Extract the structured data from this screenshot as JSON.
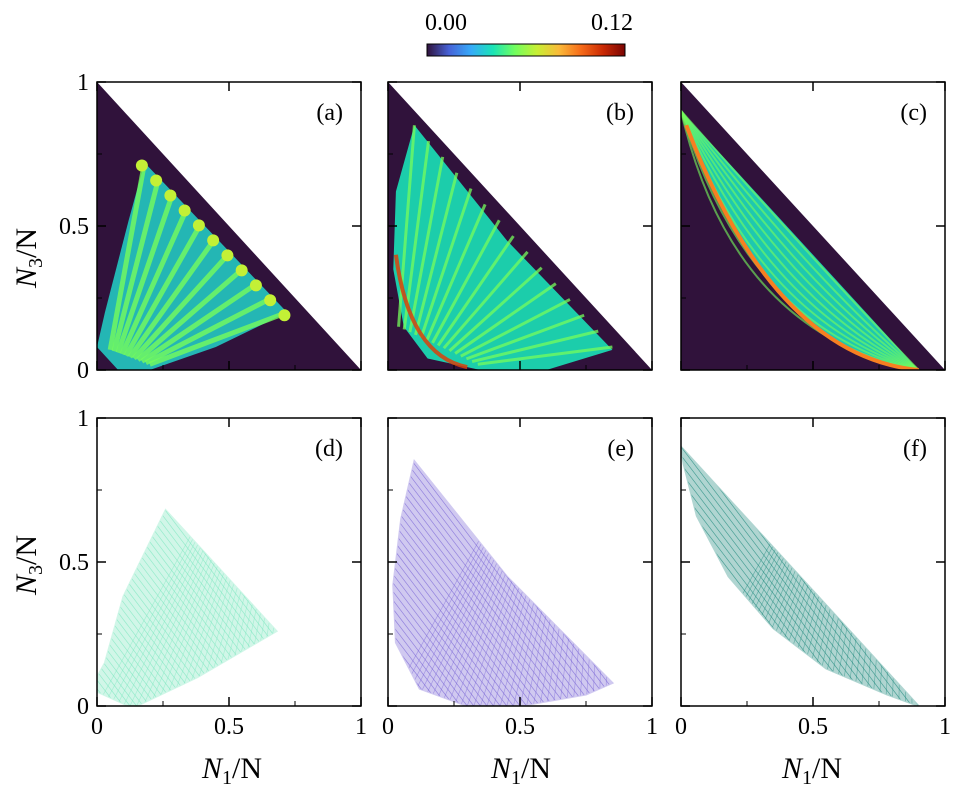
{
  "figure": {
    "colorbar": {
      "min_label": "0.00",
      "max_label": "0.12",
      "min": 0.0,
      "max": 0.12,
      "colormap": "turbo",
      "colors": [
        "#30123b",
        "#4662d7",
        "#36aaf9",
        "#1ae4b6",
        "#72fe5e",
        "#c7ef34",
        "#faba39",
        "#f66b19",
        "#ca2a04",
        "#7a0403"
      ]
    },
    "x_title": {
      "main": "N",
      "sub": "1",
      "rest": "/N"
    },
    "y_title": {
      "main": "N",
      "sub": "3",
      "rest": "/N"
    },
    "background_color": "#30123b"
  },
  "chart_data": [
    {
      "panel": "(a)",
      "type": "heatmap",
      "x_ticks": [
        "",
        "",
        ""
      ],
      "y_ticks": [
        "0",
        "0.5",
        "1"
      ],
      "xlim": [
        0,
        1
      ],
      "ylim": [
        0,
        1
      ],
      "region": "triangle N1 + N3 <= 1",
      "description_values": {
        "peak_max": 0.06,
        "center": [
          0.25,
          0.25
        ],
        "n_rays": 11
      }
    },
    {
      "panel": "(b)",
      "type": "heatmap",
      "x_ticks": [
        "",
        "",
        ""
      ],
      "y_ticks": [
        "",
        "",
        ""
      ],
      "xlim": [
        0,
        1
      ],
      "ylim": [
        0,
        1
      ],
      "description_values": {
        "peak_max": 0.12,
        "n_rays": 15
      }
    },
    {
      "panel": "(c)",
      "type": "heatmap",
      "x_ticks": [
        "",
        "",
        ""
      ],
      "y_ticks": [
        "",
        "",
        ""
      ],
      "xlim": [
        0,
        1
      ],
      "ylim": [
        0,
        1
      ],
      "description_values": {
        "peak_max": 0.11
      }
    },
    {
      "panel": "(d)",
      "type": "scatter",
      "x_ticks": [
        "0",
        "0.5",
        "1"
      ],
      "y_ticks": [
        "0",
        "0.5",
        "1"
      ],
      "xlim": [
        0,
        1
      ],
      "ylim": [
        0,
        1
      ],
      "color": "#7ee8c0",
      "hull": [
        [
          0.0,
          0.1
        ],
        [
          0.03,
          0.15
        ],
        [
          0.1,
          0.38
        ],
        [
          0.26,
          0.68
        ],
        [
          0.68,
          0.26
        ],
        [
          0.38,
          0.1
        ],
        [
          0.15,
          0.0
        ],
        [
          0.12,
          0.0
        ],
        [
          0.0,
          0.05
        ]
      ]
    },
    {
      "panel": "(e)",
      "type": "scatter",
      "x_ticks": [
        "0",
        "0.5",
        "1"
      ],
      "y_ticks": [
        "",
        "",
        ""
      ],
      "xlim": [
        0,
        1
      ],
      "ylim": [
        0,
        1
      ],
      "color": "#7a66d6",
      "hull": [
        [
          0.1,
          0.85
        ],
        [
          0.45,
          0.45
        ],
        [
          0.85,
          0.08
        ],
        [
          0.75,
          0.04
        ],
        [
          0.5,
          0.0
        ],
        [
          0.3,
          0.0
        ],
        [
          0.12,
          0.06
        ],
        [
          0.03,
          0.22
        ],
        [
          0.02,
          0.42
        ],
        [
          0.05,
          0.65
        ]
      ]
    },
    {
      "panel": "(f)",
      "type": "scatter",
      "x_ticks": [
        "0",
        "0.5",
        "1"
      ],
      "y_ticks": [
        "",
        "",
        ""
      ],
      "xlim": [
        0,
        1
      ],
      "ylim": [
        0,
        1
      ],
      "color": "#1f8a7e",
      "hull": [
        [
          0.0,
          0.9
        ],
        [
          0.9,
          0.0
        ],
        [
          0.78,
          0.04
        ],
        [
          0.55,
          0.13
        ],
        [
          0.35,
          0.27
        ],
        [
          0.18,
          0.45
        ],
        [
          0.06,
          0.66
        ],
        [
          0.01,
          0.84
        ]
      ]
    }
  ]
}
